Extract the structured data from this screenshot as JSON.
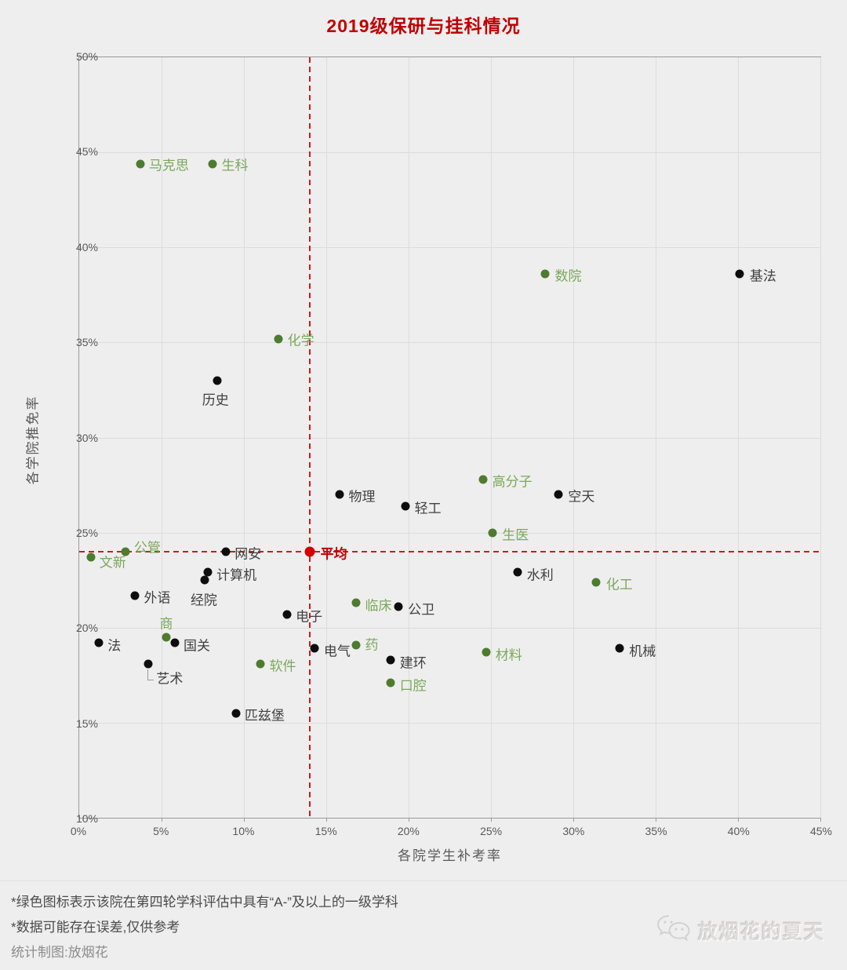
{
  "title": "2019级保研与挂科情况",
  "chart_data": {
    "type": "scatter",
    "title": "2019级保研与挂科情况",
    "xlabel": "各院学生补考率",
    "ylabel": "各学院推免率",
    "xlim": [
      0,
      45
    ],
    "ylim": [
      10,
      50
    ],
    "xticks": [
      "0%",
      "5%",
      "10%",
      "15%",
      "20%",
      "25%",
      "30%",
      "35%",
      "40%",
      "45%"
    ],
    "yticks": [
      "10%",
      "15%",
      "20%",
      "25%",
      "30%",
      "35%",
      "40%",
      "45%",
      "50%"
    ],
    "grid": true,
    "legend_note": "绿色 = 第四轮学科评估A-及以上学科学院",
    "average": {
      "label": "平均",
      "x": 14.0,
      "y": 24.0,
      "color": "#d40000"
    },
    "series": [
      {
        "name": "A-及以上学科学院",
        "color": "#4e7b2f",
        "points": [
          {
            "label": "马克思",
            "x": 3.7,
            "y": 44.4
          },
          {
            "label": "生科",
            "x": 8.1,
            "y": 44.4
          },
          {
            "label": "数院",
            "x": 28.3,
            "y": 38.6
          },
          {
            "label": "化学",
            "x": 12.1,
            "y": 35.2
          },
          {
            "label": "高分子",
            "x": 24.5,
            "y": 27.8
          },
          {
            "label": "生医",
            "x": 25.1,
            "y": 25.0
          },
          {
            "label": "公管",
            "x": 2.8,
            "y": 24.0,
            "lp": "r",
            "dy": -8
          },
          {
            "label": "文新",
            "x": 0.7,
            "y": 23.7,
            "lp": "r",
            "dy": 4
          },
          {
            "label": "化工",
            "x": 31.4,
            "y": 22.4
          },
          {
            "label": "临床",
            "x": 16.8,
            "y": 21.3
          },
          {
            "label": "商",
            "x": 5.3,
            "y": 19.5,
            "lp": "a"
          },
          {
            "label": "药",
            "x": 16.8,
            "y": 19.1,
            "lp": "r",
            "dy": -3
          },
          {
            "label": "材料",
            "x": 24.7,
            "y": 18.7
          },
          {
            "label": "软件",
            "x": 11.0,
            "y": 18.1
          },
          {
            "label": "口腔",
            "x": 18.9,
            "y": 17.1
          }
        ]
      },
      {
        "name": "其他学院",
        "color": "#0d0d0d",
        "points": [
          {
            "label": "基法",
            "x": 40.1,
            "y": 38.6
          },
          {
            "label": "历史",
            "x": 8.4,
            "y": 33.0,
            "lp": "b",
            "dx": -2
          },
          {
            "label": "物理",
            "x": 15.8,
            "y": 27.0
          },
          {
            "label": "空天",
            "x": 29.1,
            "y": 27.0
          },
          {
            "label": "轻工",
            "x": 19.8,
            "y": 26.4
          },
          {
            "label": "网安",
            "x": 8.9,
            "y": 24.0
          },
          {
            "label": "水利",
            "x": 26.6,
            "y": 22.9
          },
          {
            "label": "计算机",
            "x": 7.8,
            "y": 22.9
          },
          {
            "label": "经院",
            "x": 7.6,
            "y": 22.5,
            "lp": "b",
            "dx": 0
          },
          {
            "label": "外语",
            "x": 3.4,
            "y": 21.7
          },
          {
            "label": "公卫",
            "x": 19.4,
            "y": 21.1
          },
          {
            "label": "电子",
            "x": 12.6,
            "y": 20.7
          },
          {
            "label": "法",
            "x": 1.2,
            "y": 19.2
          },
          {
            "label": "国关",
            "x": 5.8,
            "y": 19.2
          },
          {
            "label": "电气",
            "x": 14.3,
            "y": 18.9
          },
          {
            "label": "机械",
            "x": 32.8,
            "y": 18.9
          },
          {
            "label": "艺术",
            "x": 4.2,
            "y": 18.1,
            "lp": "lb"
          },
          {
            "label": "建环",
            "x": 18.9,
            "y": 18.3
          },
          {
            "label": "匹兹堡",
            "x": 9.5,
            "y": 15.5
          }
        ]
      }
    ]
  },
  "notes": [
    "*绿色图标表示该院在第四轮学科评估中具有“A-”及以上的一级学科",
    "*数据可能存在误差,仅供参考"
  ],
  "credit": "统计制图:放烟花",
  "watermark": {
    "icon": "wechat-logo",
    "text": "放烟花的夏天"
  },
  "colors": {
    "title_red": "#c00000",
    "crosshair_red": "#c81e1e",
    "average_dot_red": "#d40000",
    "green_dot": "#4e7b2f",
    "green_label": "#7aa85c",
    "black_dot": "#0d0d0d",
    "black_label": "#404040",
    "gridline": "#dcdcdc",
    "tick_text": "#595959",
    "background": "#efeeee"
  }
}
